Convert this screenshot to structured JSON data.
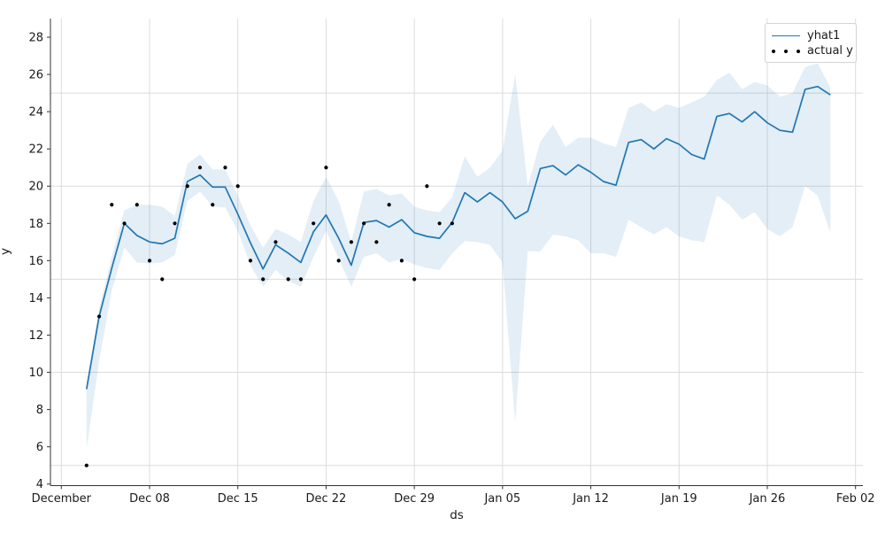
{
  "figure": {
    "background": "#ffffff",
    "accent_color": "#1f77b4",
    "dot_color": "#000000",
    "grid_color": "#dcdcdc",
    "axis_color": "#333333",
    "text_color": "#1a1a1a",
    "band_color": "#1f77b4",
    "band_opacity": 0.12
  },
  "legend": {
    "items": [
      {
        "label": "yhat1",
        "marker": "line"
      },
      {
        "label": "actual y",
        "marker": "dots"
      }
    ]
  },
  "chart_data": {
    "type": "line",
    "title": "",
    "xlabel": "ds",
    "ylabel": "y",
    "x_tick_labels": [
      "December",
      "Dec 08",
      "Dec 15",
      "Dec 22",
      "Dec 29",
      "Jan 05",
      "Jan 12",
      "Jan 19",
      "Jan 26",
      "Feb 02"
    ],
    "x_tick_days": [
      0,
      7,
      14,
      21,
      28,
      35,
      42,
      49,
      56,
      63
    ],
    "y_ticks": [
      4,
      6,
      8,
      10,
      12,
      14,
      16,
      18,
      20,
      22,
      24,
      26,
      28
    ],
    "y_grid_values": [
      5,
      10,
      15,
      20,
      25
    ],
    "ylim": [
      3.9,
      29.0
    ],
    "grid": true,
    "legend_position": "top-right",
    "dates": [
      "Dec 03",
      "Dec 04",
      "Dec 05",
      "Dec 06",
      "Dec 07",
      "Dec 08",
      "Dec 09",
      "Dec 10",
      "Dec 11",
      "Dec 12",
      "Dec 13",
      "Dec 14",
      "Dec 15",
      "Dec 16",
      "Dec 17",
      "Dec 18",
      "Dec 19",
      "Dec 20",
      "Dec 21",
      "Dec 22",
      "Dec 23",
      "Dec 24",
      "Dec 25",
      "Dec 26",
      "Dec 27",
      "Dec 28",
      "Dec 29",
      "Dec 30",
      "Dec 31",
      "Jan 01",
      "Jan 02",
      "Jan 03",
      "Jan 04",
      "Jan 05",
      "Jan 06",
      "Jan 07",
      "Jan 08",
      "Jan 09",
      "Jan 10",
      "Jan 11",
      "Jan 12",
      "Jan 13",
      "Jan 14",
      "Jan 15",
      "Jan 16",
      "Jan 17",
      "Jan 18",
      "Jan 19",
      "Jan 20",
      "Jan 21",
      "Jan 22",
      "Jan 23",
      "Jan 24",
      "Jan 25",
      "Jan 26",
      "Jan 27",
      "Jan 28",
      "Jan 29",
      "Jan 30",
      "Jan 31"
    ],
    "days_from_dec01": [
      2,
      3,
      4,
      5,
      6,
      7,
      8,
      9,
      10,
      11,
      12,
      13,
      14,
      15,
      16,
      17,
      18,
      19,
      20,
      21,
      22,
      23,
      24,
      25,
      26,
      27,
      28,
      29,
      30,
      31,
      32,
      33,
      34,
      35,
      36,
      37,
      38,
      39,
      40,
      41,
      42,
      43,
      44,
      45,
      46,
      47,
      48,
      49,
      50,
      51,
      52,
      53,
      54,
      55,
      56,
      57,
      58,
      59,
      60,
      61
    ],
    "series": [
      {
        "name": "yhat1",
        "type": "line",
        "values": [
          9.1,
          13.0,
          15.6,
          18.0,
          17.35,
          17.0,
          16.9,
          17.2,
          20.25,
          20.6,
          19.95,
          19.95,
          18.5,
          16.95,
          15.55,
          16.85,
          16.4,
          15.9,
          17.55,
          18.45,
          17.2,
          15.75,
          18.05,
          18.15,
          17.8,
          18.2,
          17.5,
          17.3,
          17.2,
          18.05,
          19.65,
          19.15,
          19.65,
          19.15,
          18.25,
          18.65,
          20.95,
          21.1,
          20.6,
          21.15,
          20.75,
          20.25,
          20.05,
          22.35,
          22.5,
          22.0,
          22.55,
          22.25,
          21.7,
          21.45,
          23.75,
          23.9,
          23.45,
          24.0,
          23.4,
          23.0,
          22.9,
          25.2,
          25.35,
          24.9
        ]
      },
      {
        "name": "actual y",
        "type": "scatter",
        "values": [
          5,
          13,
          19,
          18,
          19,
          16,
          15,
          18,
          20,
          21,
          19,
          21,
          20,
          16,
          15,
          17,
          15,
          15,
          18,
          21,
          16,
          17,
          18,
          17,
          19,
          16,
          15,
          20,
          18,
          18,
          null,
          null,
          null,
          null,
          null,
          null,
          null,
          null,
          null,
          null,
          null,
          null,
          null,
          null,
          null,
          null,
          null,
          null,
          null,
          null,
          null,
          null,
          null,
          null,
          null,
          null,
          null,
          null,
          null,
          null
        ]
      }
    ],
    "uncertainty_band": {
      "lower": [
        5.9,
        10.6,
        14.4,
        16.7,
        15.9,
        15.85,
        15.9,
        16.3,
        19.2,
        19.7,
        18.9,
        18.85,
        17.6,
        15.75,
        14.6,
        15.5,
        14.9,
        14.6,
        16.2,
        17.6,
        16.1,
        14.6,
        16.2,
        16.4,
        15.9,
        16.1,
        15.8,
        15.6,
        15.5,
        16.4,
        17.05,
        17.0,
        16.85,
        15.9,
        7.3,
        16.5,
        16.5,
        17.4,
        17.3,
        17.1,
        16.4,
        16.4,
        16.2,
        18.2,
        17.8,
        17.4,
        17.8,
        17.3,
        17.1,
        17.0,
        19.5,
        19.0,
        18.2,
        18.6,
        17.7,
        17.3,
        17.8,
        20.0,
        19.5,
        17.5
      ],
      "upper": [
        9.4,
        13.4,
        16.2,
        18.7,
        19.0,
        19.0,
        18.9,
        18.4,
        21.2,
        21.7,
        20.9,
        20.9,
        19.5,
        17.9,
        16.7,
        17.7,
        17.4,
        17.0,
        19.2,
        20.5,
        19.2,
        17.0,
        19.7,
        19.85,
        19.5,
        19.6,
        18.9,
        18.7,
        18.6,
        19.4,
        21.6,
        20.5,
        21.0,
        21.9,
        26.0,
        20.0,
        22.4,
        23.3,
        22.1,
        22.6,
        22.6,
        22.3,
        22.1,
        24.2,
        24.5,
        24.0,
        24.4,
        24.2,
        24.5,
        24.8,
        25.7,
        26.1,
        25.2,
        25.6,
        25.4,
        24.8,
        25.0,
        26.4,
        26.6,
        25.3
      ]
    }
  }
}
